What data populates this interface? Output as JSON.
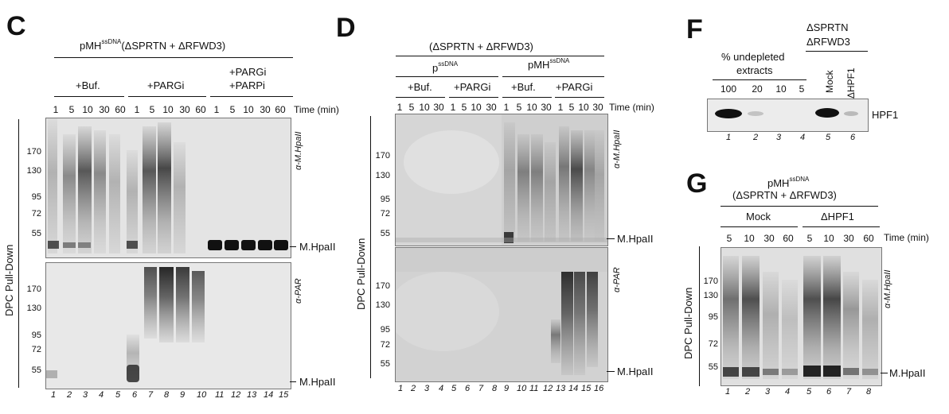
{
  "panels": {
    "C": {
      "letter": "C",
      "title": {
        "pre": "pMH",
        "sup": "ssDNA",
        "post": "(ΔSPRTN + ΔRFWD3)"
      },
      "groups": [
        "+Buf.",
        "+PARGi",
        "+PARGi",
        "+PARPi"
      ],
      "time_values": [
        "1",
        "5",
        "10",
        "30",
        "60",
        "1",
        "5",
        "10",
        "30",
        "60",
        "1",
        "5",
        "10",
        "30",
        "60"
      ],
      "time_unit": "Time (min)",
      "y_axis": "DPC Pull-Down",
      "mw_top": [
        "170",
        "130",
        "95",
        "72",
        "55"
      ],
      "mw_bottom": [
        "170",
        "130",
        "95",
        "72",
        "55"
      ],
      "right_top": [
        "α-M.HpaII",
        "M.HpaII"
      ],
      "right_bottom": [
        "α-PAR",
        "M.HpaII"
      ],
      "lanes": [
        "1",
        "2",
        "3",
        "4",
        "5",
        "6",
        "7",
        "8",
        "9",
        "10",
        "11",
        "12",
        "13",
        "14",
        "15"
      ]
    },
    "D": {
      "letter": "D",
      "title": "(ΔSPRTN + ΔRFWD3)",
      "sub_pre1": "p",
      "sub_sup1": "ssDNA",
      "sub_pre2": "pMH",
      "sub_sup2": "ssDNA",
      "groups": [
        "+Buf.",
        "+PARGi",
        "+Buf.",
        "+PARGi"
      ],
      "time_values": [
        "1",
        "5",
        "10",
        "30",
        "1",
        "5",
        "10",
        "30",
        "1",
        "5",
        "10",
        "30",
        "1",
        "5",
        "10",
        "30"
      ],
      "time_unit": "Time (min)",
      "y_axis": "DPC Pull-Down",
      "mw_top": [
        "170",
        "130",
        "95",
        "72",
        "55"
      ],
      "mw_bottom": [
        "170",
        "130",
        "95",
        "72",
        "55"
      ],
      "right_top": [
        "α-M.HpaII",
        "M.HpaII"
      ],
      "right_bottom": [
        "α-PAR",
        "M.HpaII"
      ],
      "lanes": [
        "1",
        "2",
        "3",
        "4",
        "5",
        "6",
        "7",
        "8",
        "9",
        "10",
        "11",
        "12",
        "13",
        "14",
        "15",
        "16"
      ]
    },
    "F": {
      "letter": "F",
      "header1": "ΔSPRTN",
      "header2": "ΔRFWD3",
      "undepleted1": "% undepleted",
      "undepleted2": "extracts",
      "values": [
        "100",
        "20",
        "10",
        "5"
      ],
      "mock": "Mock",
      "dhpf1": "ΔHPF1",
      "band_label": "HPF1",
      "lanes": [
        "1",
        "2",
        "3",
        "4",
        "5",
        "6"
      ]
    },
    "G": {
      "letter": "G",
      "title1": {
        "pre": "pMH",
        "sup": "ssDNA"
      },
      "title2": "(ΔSPRTN + ΔRFWD3)",
      "groups": [
        "Mock",
        "ΔHPF1"
      ],
      "time_values": [
        "5",
        "10",
        "30",
        "60",
        "5",
        "10",
        "30",
        "60"
      ],
      "time_unit": "Time (min)",
      "y_axis": "DPC Pull-Down",
      "mw": [
        "170",
        "130",
        "95",
        "72",
        "55"
      ],
      "right": [
        "α-M.HpaII",
        "M.HpaII"
      ],
      "lanes": [
        "1",
        "2",
        "3",
        "4",
        "5",
        "6",
        "7",
        "8"
      ]
    }
  }
}
